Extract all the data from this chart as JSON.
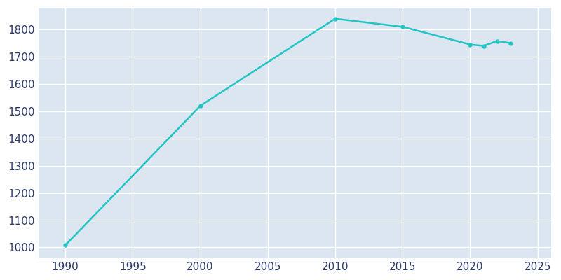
{
  "years": [
    1990,
    2000,
    2010,
    2015,
    2020,
    2021,
    2022,
    2023
  ],
  "population": [
    1008,
    1520,
    1840,
    1810,
    1745,
    1740,
    1758,
    1750
  ],
  "line_color": "#22C4C4",
  "axes_background_color": "#DCE6F0",
  "figure_background_color": "#FFFFFF",
  "grid_color": "#FFFFFF",
  "text_color": "#2B3A6B",
  "xlim": [
    1988,
    2026
  ],
  "ylim": [
    960,
    1880
  ],
  "xticks": [
    1990,
    1995,
    2000,
    2005,
    2010,
    2015,
    2020,
    2025
  ],
  "yticks": [
    1000,
    1100,
    1200,
    1300,
    1400,
    1500,
    1600,
    1700,
    1800
  ],
  "linewidth": 1.8,
  "marker": "o",
  "markersize": 3.5,
  "tick_labelsize": 11
}
